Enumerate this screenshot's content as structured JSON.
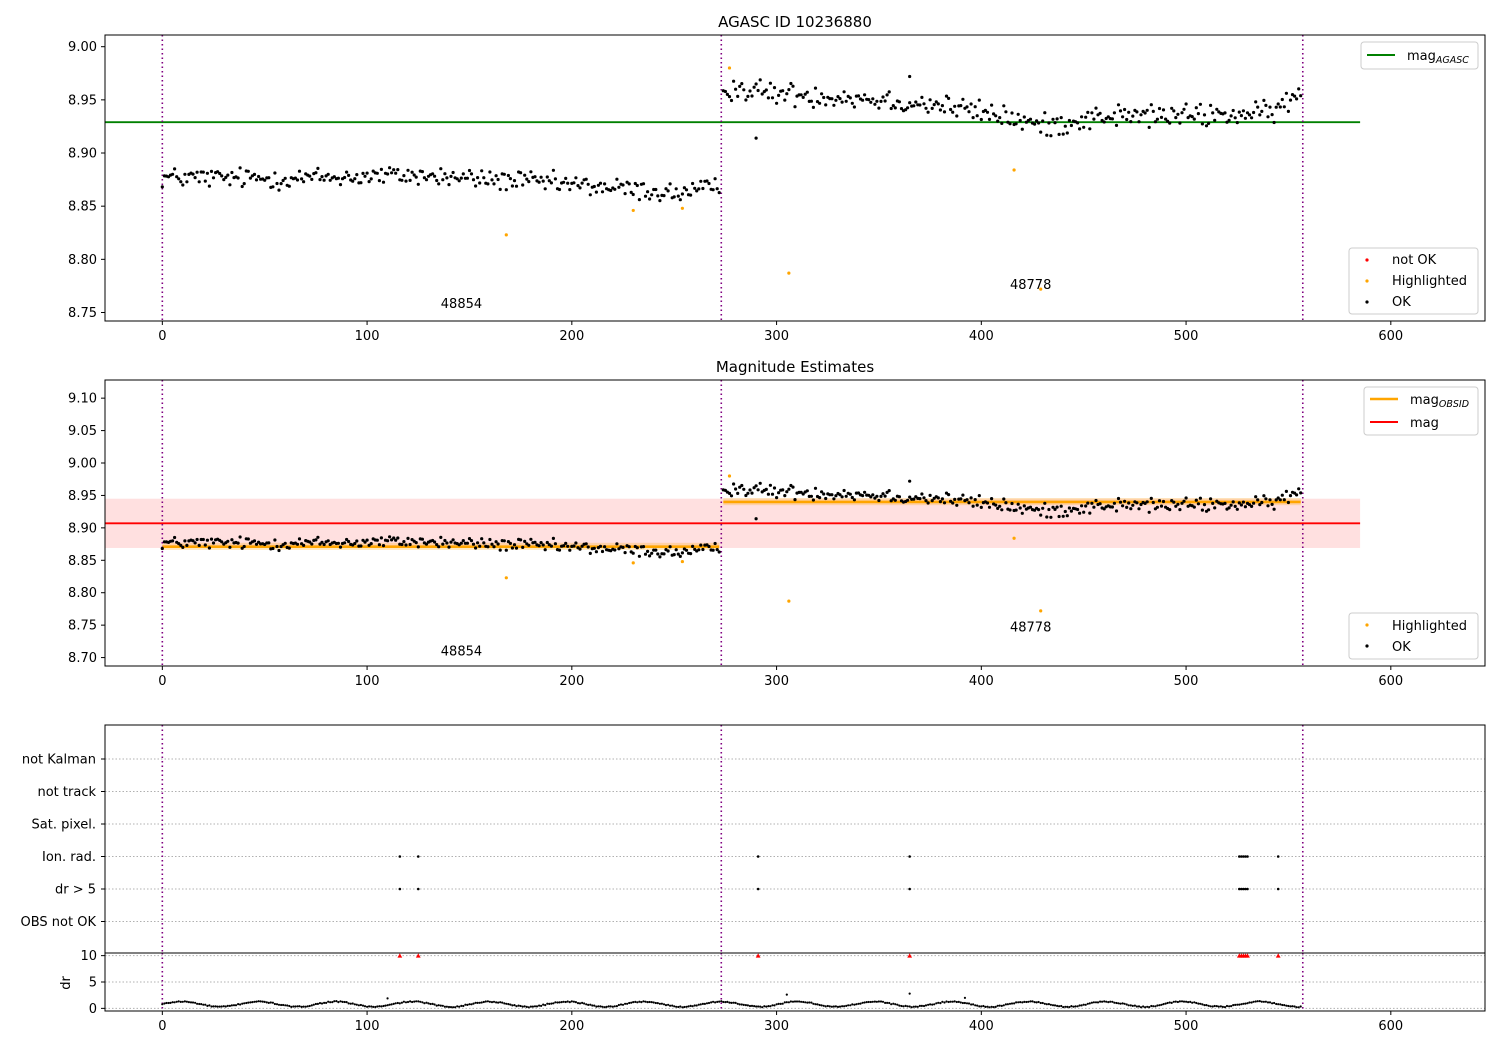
{
  "chart_data": [
    {
      "type": "scatter",
      "title": "AGASC ID 10236880",
      "xlabel": "",
      "ylabel": "",
      "xlim": [
        -28,
        646
      ],
      "ylim": [
        8.742,
        9.011
      ],
      "xticks": [
        0,
        100,
        200,
        300,
        400,
        500,
        600
      ],
      "yticks": [
        8.75,
        8.8,
        8.85,
        8.9,
        8.95,
        9.0
      ],
      "ytick_labels": [
        "8.75",
        "8.80",
        "8.85",
        "8.90",
        "8.95",
        "9.00"
      ],
      "grid": false,
      "obs_boundaries": [
        0,
        273,
        557
      ],
      "obsid_labels": [
        {
          "text": "48854",
          "x": 136,
          "y": 8.754
        },
        {
          "text": "48778",
          "x": 414,
          "y": 8.772
        }
      ],
      "lines": [
        {
          "name": "mag$_{AGASC}$",
          "y": 8.929,
          "x_range": [
            -28,
            585
          ],
          "color": "#008000"
        }
      ],
      "series": [
        {
          "name": "OK",
          "color": "#000000",
          "segments": [
            {
              "x_range": [
                0,
                272
              ],
              "anchors": [
                [
                  0,
                  8.877
                ],
                [
                  60,
                  8.876
                ],
                [
                  120,
                  8.879
                ],
                [
                  180,
                  8.873
                ],
                [
                  215,
                  8.868
                ],
                [
                  250,
                  8.862
                ],
                [
                  272,
                  8.867
                ]
              ],
              "scatter": 0.008
            },
            {
              "x_range": [
                274,
                556
              ],
              "anchors": [
                [
                  274,
                  8.962
                ],
                [
                  300,
                  8.956
                ],
                [
                  340,
                  8.952
                ],
                [
                  380,
                  8.945
                ],
                [
                  410,
                  8.935
                ],
                [
                  430,
                  8.925
                ],
                [
                  460,
                  8.935
                ],
                [
                  500,
                  8.935
                ],
                [
                  540,
                  8.937
                ],
                [
                  556,
                  8.955
                ]
              ],
              "scatter": 0.009
            }
          ]
        },
        {
          "name": "Highlighted",
          "color": "#ffa500",
          "points": [
            [
              168,
              8.823
            ],
            [
              230,
              8.846
            ],
            [
              254,
              8.848
            ],
            [
              277,
              8.98
            ],
            [
              306,
              8.787
            ],
            [
              416,
              8.884
            ],
            [
              429,
              8.772
            ]
          ]
        },
        {
          "name": "not OK",
          "color": "#ff0000",
          "points": []
        }
      ],
      "outliers": [
        [
          290,
          8.914
        ],
        [
          365,
          8.972
        ]
      ],
      "legends": [
        {
          "position": "upper right",
          "entries": [
            {
              "label": "mag",
              "sub": "AGASC",
              "kind": "line",
              "color": "#008000"
            }
          ]
        },
        {
          "position": "lower right",
          "entries": [
            {
              "label": "not OK",
              "kind": "marker",
              "color": "#ff0000"
            },
            {
              "label": "Highlighted",
              "kind": "marker",
              "color": "#ffa500"
            },
            {
              "label": "OK",
              "kind": "marker",
              "color": "#000000"
            }
          ]
        }
      ]
    },
    {
      "type": "scatter",
      "title": "Magnitude Estimates",
      "xlabel": "",
      "ylabel": "",
      "xlim": [
        -28,
        646
      ],
      "ylim": [
        8.687,
        9.128
      ],
      "xticks": [
        0,
        100,
        200,
        300,
        400,
        500,
        600
      ],
      "yticks": [
        8.7,
        8.75,
        8.8,
        8.85,
        8.9,
        8.95,
        9.0,
        9.05,
        9.1
      ],
      "ytick_labels": [
        "8.70",
        "8.75",
        "8.80",
        "8.85",
        "8.90",
        "8.95",
        "9.00",
        "9.05",
        "9.10"
      ],
      "grid": false,
      "obs_boundaries": [
        0,
        273,
        557
      ],
      "obsid_labels": [
        {
          "text": "48854",
          "x": 136,
          "y": 8.703
        },
        {
          "text": "48778",
          "x": 414,
          "y": 8.74
        }
      ],
      "bands": [
        {
          "y_range": [
            8.869,
            8.945
          ],
          "x_range": [
            -28,
            585
          ],
          "color": "#ff0000",
          "opacity": 0.12
        },
        {
          "y_range": [
            8.866,
            8.877
          ],
          "x_range": [
            0,
            272
          ],
          "color": "#ffa500",
          "opacity": 0.25
        },
        {
          "y_range": [
            8.935,
            8.946
          ],
          "x_range": [
            274,
            556
          ],
          "color": "#ffa500",
          "opacity": 0.25
        }
      ],
      "lines": [
        {
          "name": "mag$_{OBSID}$",
          "y": 8.871,
          "x_range": [
            0,
            272
          ],
          "color": "#ffa500"
        },
        {
          "name": "mag$_{OBSID}$",
          "y": 8.94,
          "x_range": [
            274,
            556
          ],
          "color": "#ffa500"
        },
        {
          "name": "mag",
          "y": 8.907,
          "x_range": [
            -28,
            585
          ],
          "color": "#ff0000"
        }
      ],
      "series": [
        {
          "name": "OK",
          "color": "#000000",
          "segments": [
            {
              "x_range": [
                0,
                272
              ],
              "anchors": [
                [
                  0,
                  8.877
                ],
                [
                  60,
                  8.876
                ],
                [
                  120,
                  8.879
                ],
                [
                  180,
                  8.873
                ],
                [
                  215,
                  8.868
                ],
                [
                  250,
                  8.862
                ],
                [
                  272,
                  8.867
                ]
              ],
              "scatter": 0.008
            },
            {
              "x_range": [
                274,
                556
              ],
              "anchors": [
                [
                  274,
                  8.962
                ],
                [
                  300,
                  8.956
                ],
                [
                  340,
                  8.952
                ],
                [
                  380,
                  8.945
                ],
                [
                  410,
                  8.935
                ],
                [
                  430,
                  8.925
                ],
                [
                  460,
                  8.935
                ],
                [
                  500,
                  8.935
                ],
                [
                  540,
                  8.937
                ],
                [
                  556,
                  8.955
                ]
              ],
              "scatter": 0.009
            }
          ]
        },
        {
          "name": "Highlighted",
          "color": "#ffa500",
          "points": [
            [
              168,
              8.823
            ],
            [
              230,
              8.846
            ],
            [
              254,
              8.848
            ],
            [
              277,
              8.98
            ],
            [
              306,
              8.787
            ],
            [
              416,
              8.884
            ],
            [
              429,
              8.772
            ]
          ]
        }
      ],
      "outliers": [
        [
          290,
          8.914
        ],
        [
          365,
          8.972
        ]
      ],
      "legends": [
        {
          "position": "upper right",
          "entries": [
            {
              "label": "mag",
              "sub": "OBSID",
              "kind": "line",
              "color": "#ffa500"
            },
            {
              "label": "mag",
              "sub": "",
              "kind": "line",
              "color": "#ff0000"
            }
          ]
        },
        {
          "position": "lower right",
          "entries": [
            {
              "label": "Highlighted",
              "kind": "marker",
              "color": "#ffa500"
            },
            {
              "label": "OK",
              "kind": "marker",
              "color": "#000000"
            }
          ]
        }
      ]
    },
    {
      "type": "scatter",
      "title": "",
      "xlabel": "",
      "ylabel": "",
      "xlim": [
        -28,
        646
      ],
      "categories": [
        "not Kalman",
        "not track",
        "Sat. pixel.",
        "Ion. rad.",
        "dr > 5",
        "OBS not OK"
      ],
      "grid": "horizontal dotted",
      "obs_boundaries": [
        0,
        273,
        557
      ],
      "flags": {
        "Ion. rad.": [
          116,
          125,
          291,
          365,
          526,
          527,
          528,
          529,
          530,
          545
        ],
        "dr > 5": [
          116,
          125,
          291,
          365,
          526,
          527,
          528,
          529,
          530,
          545
        ]
      }
    },
    {
      "type": "scatter",
      "title": "",
      "xlabel": "",
      "ylabel": "dr",
      "xlim": [
        -28,
        646
      ],
      "ylim": [
        -0.5,
        10.5
      ],
      "xticks": [
        0,
        100,
        200,
        300,
        400,
        500,
        600
      ],
      "yticks": [
        0,
        5,
        10
      ],
      "ytick_labels": [
        "0",
        "5",
        "10"
      ],
      "grid": "horizontal dotted",
      "obs_boundaries": [
        0,
        273,
        557
      ],
      "series": [
        {
          "name": "dr",
          "color": "#000000",
          "pattern": "wave",
          "x_range": [
            0,
            556
          ],
          "range": [
            0.2,
            1.6
          ]
        },
        {
          "name": "dr > 5 (clipped)",
          "color": "#ff0000",
          "marker": "triangle",
          "y": 10,
          "points": [
            116,
            125,
            291,
            365,
            526,
            527,
            528,
            529,
            530,
            545
          ]
        }
      ],
      "outliers": [
        [
          110,
          1.9
        ],
        [
          305,
          2.6
        ],
        [
          365,
          2.8
        ],
        [
          392,
          2.0
        ]
      ]
    }
  ]
}
